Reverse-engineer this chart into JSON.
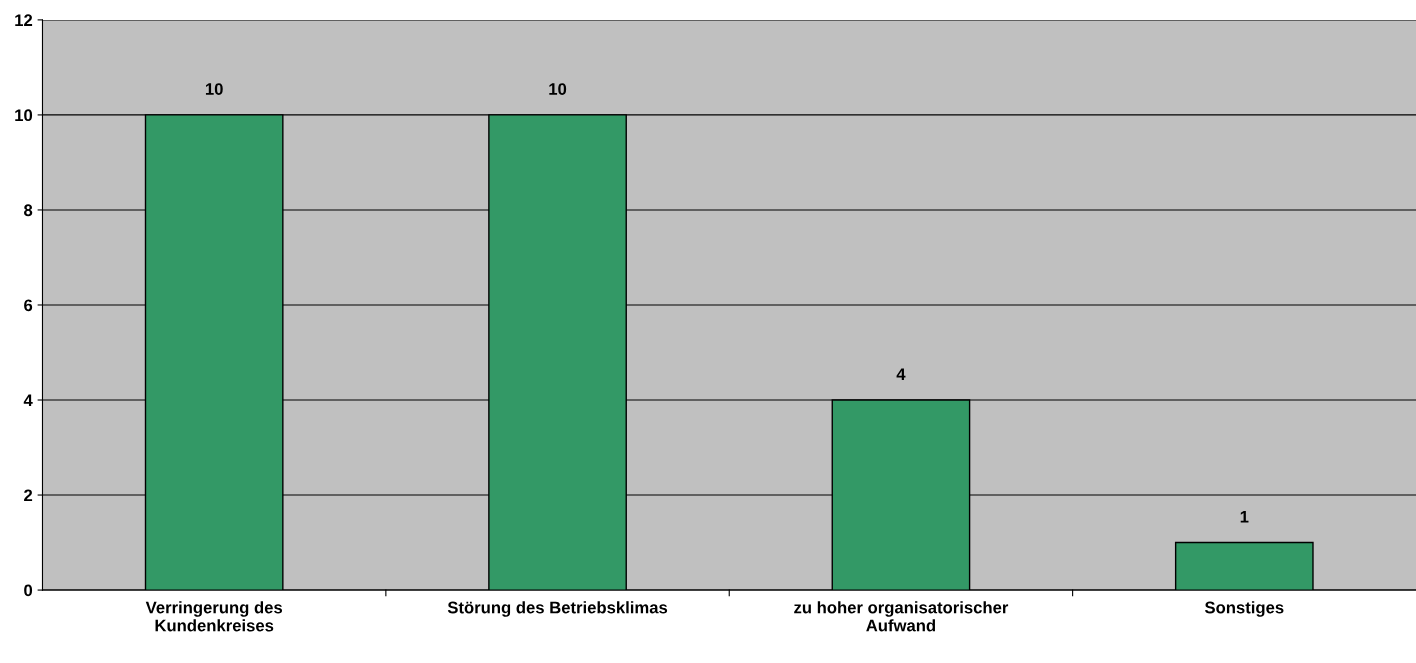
{
  "chart_data": {
    "type": "bar",
    "categories": [
      "Verringerung des\nKundenkreises",
      "Störung des Betriebsklimas",
      "zu hoher organisatorischer\nAufwand",
      "Sonstiges"
    ],
    "values": [
      10,
      10,
      4,
      1
    ],
    "color": "#339966",
    "ylim": [
      0,
      12
    ],
    "yticks": [
      0,
      2,
      4,
      6,
      8,
      10,
      12
    ],
    "grid": "y",
    "data_labels": true
  }
}
